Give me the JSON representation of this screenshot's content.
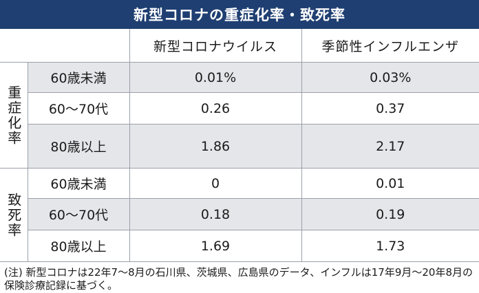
{
  "title": "新型コロナの重症化率・致死率",
  "columns": {
    "covid": "新型コロナウイルス",
    "flu": "季節性インフルエンザ"
  },
  "groups": {
    "severe": {
      "label": "重症化率",
      "rows": [
        {
          "age": "60歳未満",
          "covid": "0.01%",
          "flu": "0.03%"
        },
        {
          "age": "60〜70代",
          "covid": "0.26",
          "flu": "0.37"
        },
        {
          "age": "80歳以上",
          "covid": "1.86",
          "flu": "2.17"
        }
      ]
    },
    "fatal": {
      "label": "致死率",
      "rows": [
        {
          "age": "60歳未満",
          "covid": "0",
          "flu": "0.01"
        },
        {
          "age": "60〜70代",
          "covid": "0.18",
          "flu": "0.19"
        },
        {
          "age": "80歳以上",
          "covid": "1.69",
          "flu": "1.73"
        }
      ]
    }
  },
  "footnote": "(注) 新型コロナは22年7〜8月の石川県、茨城県、広島県のデータ、インフルは17年9月〜20年8月の保険診療記録に基づく。",
  "colors": {
    "title_bg": "#1f3f72",
    "shade": "#e4e6ea"
  }
}
